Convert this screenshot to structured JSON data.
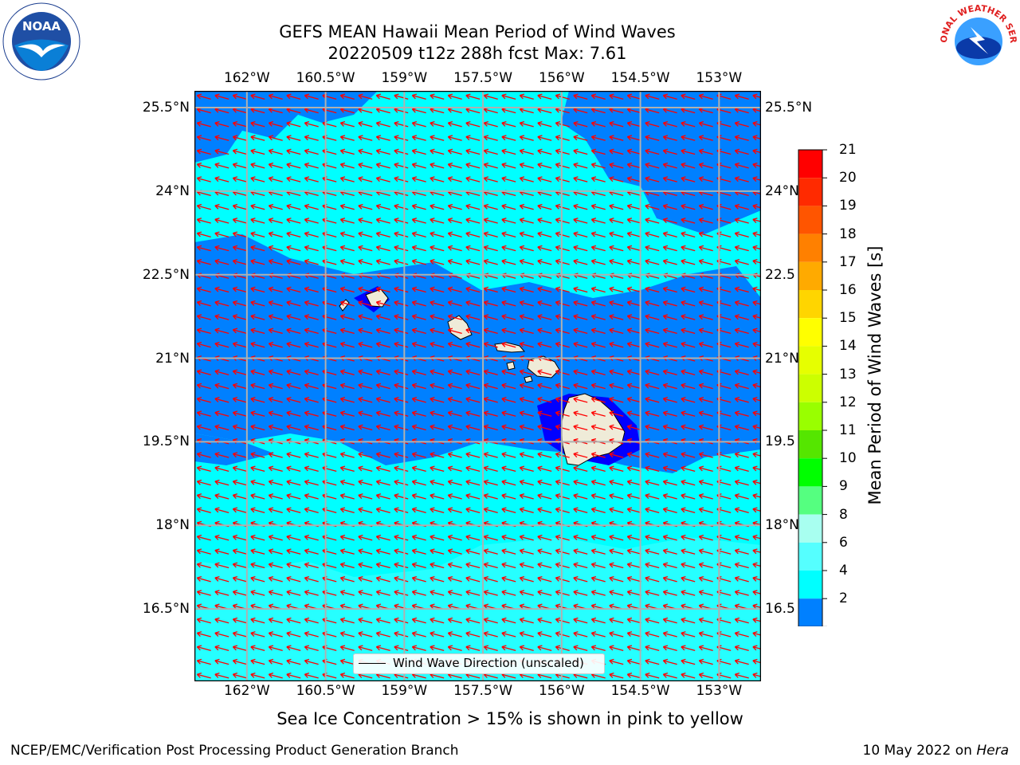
{
  "title": {
    "line1": "GEFS MEAN Hawaii Mean Period of Wind Waves",
    "line2": "20220509 t12z 288h fcst   Max: 7.61"
  },
  "colors": {
    "map_background": "#00ffff",
    "land": "#efebd8",
    "wind_arrows": "#ff0000",
    "grid": "#b0b0b0"
  },
  "map": {
    "lon_ticks": [
      "162°W",
      "160.5°W",
      "159°W",
      "157.5°W",
      "156°W",
      "154.5°W",
      "153°W"
    ],
    "lon_values": [
      -162,
      -160.5,
      -159,
      -157.5,
      -156,
      -154.5,
      -153
    ],
    "lat_ticks": [
      "25.5°N",
      "24°N",
      "22.5°N",
      "21°N",
      "19.5°N",
      "18°N",
      "16.5°N"
    ],
    "lat_values": [
      25.5,
      24,
      22.5,
      21,
      19.5,
      18,
      16.5
    ],
    "right_lat_ticks": [
      "25.5°N",
      "24°N",
      "22.5",
      "21°N",
      "19.5",
      "18°N",
      "16.5"
    ],
    "lon_range": [
      -163,
      -152.2
    ],
    "lat_range": [
      15.2,
      25.8
    ],
    "wind_direction_note": "arrows point predominantly toward the west-southwest",
    "legend_label": "Wind Wave Direction (unscaled)"
  },
  "colorbar": {
    "label": "Mean Period of Wind Waves [s]",
    "ticks": [
      "21",
      "20",
      "19",
      "18",
      "17",
      "16",
      "15",
      "14",
      "13",
      "12",
      "11",
      "10",
      "9",
      "8",
      "6",
      "4",
      "2"
    ],
    "colors": [
      "#ff0000",
      "#ff2a00",
      "#ff5500",
      "#ff8000",
      "#ffaa00",
      "#ffd500",
      "#ffff00",
      "#e6ff00",
      "#ccff00",
      "#99ff00",
      "#55e600",
      "#00ff00",
      "#55ff80",
      "#a8fff0",
      "#55ffff",
      "#00ffff",
      "#0080ff"
    ],
    "under_color": "#0000ff"
  },
  "caption": "Sea Ice Concentration > 15% is shown in pink to yellow",
  "footer": {
    "left": "NCEP/EMC/Verification Post Processing Product Generation Branch",
    "date": "10 May 2022 on ",
    "system": "Hera"
  },
  "logos": {
    "noaa": "NOAA",
    "nws": "NATIONAL WEATHER SERVICE"
  }
}
